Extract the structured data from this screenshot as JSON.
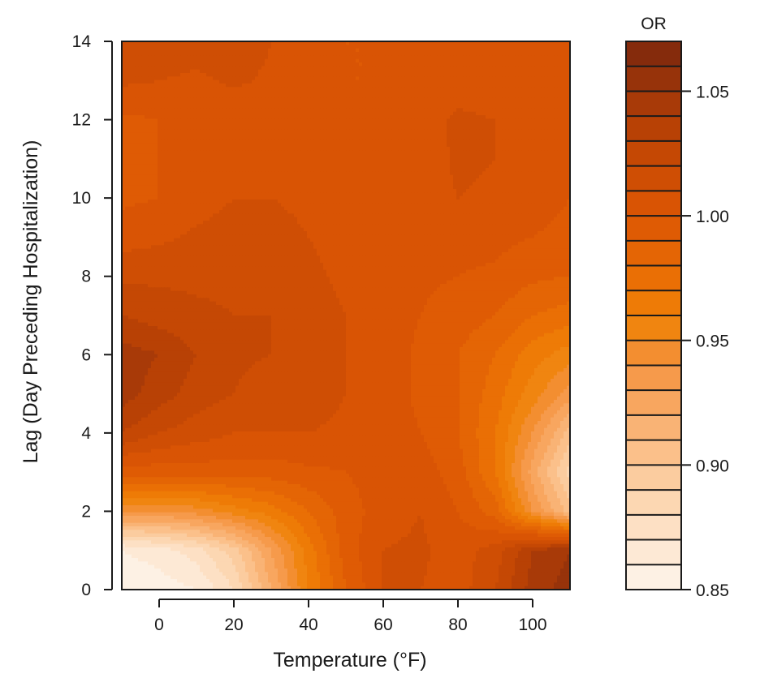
{
  "chart_data": {
    "type": "heatmap",
    "subtype": "filled-contour",
    "title": "",
    "xlabel": "Temperature (°F)",
    "ylabel": "Lag (Day Preceding Hospitalization)",
    "xlim": [
      -10,
      110
    ],
    "ylim": [
      0,
      14
    ],
    "xticks": [
      0,
      20,
      40,
      60,
      80,
      100
    ],
    "yticks": [
      0,
      2,
      4,
      6,
      8,
      10,
      12,
      14
    ],
    "x_grid": [
      -10,
      0,
      10,
      20,
      30,
      40,
      50,
      60,
      70,
      80,
      90,
      100,
      110
    ],
    "y_grid": [
      0,
      1,
      2,
      3,
      4,
      5,
      6,
      7,
      8,
      9,
      10,
      11,
      12,
      13,
      14
    ],
    "z_values": [
      [
        0.85,
        0.855,
        0.86,
        0.88,
        0.92,
        0.96,
        0.99,
        1.01,
        1.01,
        1.005,
        1.02,
        1.045,
        1.055
      ],
      [
        0.86,
        0.865,
        0.875,
        0.895,
        0.93,
        0.965,
        0.995,
        1.01,
        1.012,
        1.005,
        1.015,
        1.04,
        1.05
      ],
      [
        0.94,
        0.94,
        0.945,
        0.955,
        0.965,
        0.98,
        0.995,
        1.005,
        1.01,
        1.0,
        0.985,
        0.94,
        0.905
      ],
      [
        0.995,
        0.995,
        0.995,
        0.995,
        0.995,
        0.998,
        1.0,
        1.005,
        1.005,
        0.995,
        0.97,
        0.925,
        0.885
      ],
      [
        1.03,
        1.02,
        1.015,
        1.01,
        1.01,
        1.01,
        1.008,
        1.005,
        1.0,
        0.99,
        0.97,
        0.94,
        0.905
      ],
      [
        1.045,
        1.035,
        1.025,
        1.02,
        1.015,
        1.015,
        1.01,
        1.005,
        0.998,
        0.99,
        0.975,
        0.955,
        0.935
      ],
      [
        1.045,
        1.04,
        1.03,
        1.022,
        1.02,
        1.018,
        1.01,
        1.005,
        0.998,
        0.99,
        0.98,
        0.965,
        0.955
      ],
      [
        1.03,
        1.025,
        1.022,
        1.02,
        1.02,
        1.015,
        1.01,
        1.005,
        1.0,
        0.995,
        0.99,
        0.98,
        0.975
      ],
      [
        1.018,
        1.018,
        1.018,
        1.018,
        1.018,
        1.012,
        1.008,
        1.005,
        1.002,
        1.0,
        0.998,
        0.992,
        0.99
      ],
      [
        1.005,
        1.008,
        1.012,
        1.015,
        1.015,
        1.01,
        1.007,
        1.005,
        1.004,
        1.004,
        1.003,
        1.0,
        0.998
      ],
      [
        0.998,
        1.0,
        1.005,
        1.01,
        1.01,
        1.007,
        1.005,
        1.005,
        1.005,
        1.01,
        1.008,
        1.003,
        1.0
      ],
      [
        0.998,
        1.0,
        1.003,
        1.005,
        1.005,
        1.004,
        1.003,
        1.003,
        1.004,
        1.012,
        1.01,
        1.005,
        1.002
      ],
      [
        0.998,
        1.0,
        1.0,
        1.002,
        1.003,
        1.003,
        1.003,
        1.002,
        1.005,
        1.012,
        1.01,
        1.005,
        1.002
      ],
      [
        1.012,
        1.01,
        1.008,
        1.012,
        1.008,
        1.004,
        1.0,
        1.0,
        1.002,
        1.005,
        1.004,
        1.002,
        1.0
      ],
      [
        1.02,
        1.018,
        1.015,
        1.018,
        1.01,
        1.005,
        1.0,
        1.0,
        1.0,
        1.0,
        1.0,
        1.0,
        1.0
      ]
    ],
    "colorbar": {
      "title": "OR",
      "range": [
        0.85,
        1.07
      ],
      "levels": [
        0.85,
        0.86,
        0.87,
        0.88,
        0.89,
        0.9,
        0.91,
        0.92,
        0.93,
        0.94,
        0.95,
        0.96,
        0.97,
        0.98,
        0.99,
        1.0,
        1.01,
        1.02,
        1.03,
        1.04,
        1.05,
        1.06,
        1.07
      ],
      "ticks": [
        0.85,
        0.9,
        0.95,
        1.0,
        1.05
      ],
      "tick_labels": [
        "0.85",
        "0.90",
        "0.95",
        "1.00",
        "1.05"
      ],
      "colors": [
        "#fdf1e4",
        "#fde9d5",
        "#fde0c4",
        "#fcd7b2",
        "#fbcc9f",
        "#fbc08a",
        "#f9b375",
        "#f8a65f",
        "#f69a4b",
        "#f38e30",
        "#f08510",
        "#ee7b06",
        "#ea6f05",
        "#e46505",
        "#df5b04",
        "#d95404",
        "#cf4e04",
        "#c54804",
        "#b84105",
        "#a83a08",
        "#97330a",
        "#852b0c"
      ]
    }
  }
}
